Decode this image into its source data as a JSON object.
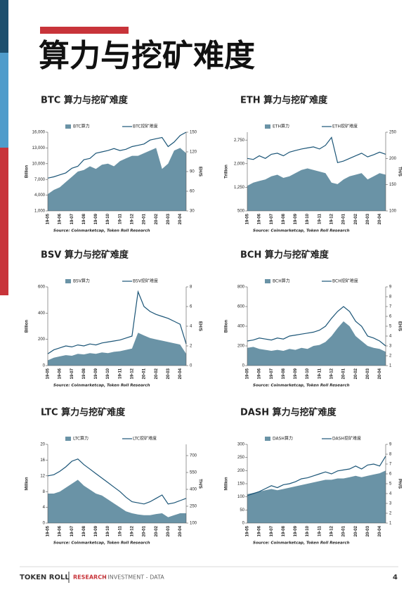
{
  "page_title": "算力与挖矿难度",
  "footer": {
    "brand": "TOKEN ROLL",
    "research": "RESEARCH",
    "rest": "- INVESTMENT - DATA",
    "page": 4
  },
  "chart_data": [
    {
      "type": "combo",
      "title": "BTC 算力与挖矿难度",
      "ylabel": "Billion",
      "y2label": "EH/S",
      "source": "Source: Coinmarketcap, Token Roll Research",
      "categories": [
        "19-05",
        null,
        "19-06",
        null,
        "19-07",
        null,
        "19-08",
        null,
        "19-09",
        null,
        "19-10",
        null,
        "19-11",
        null,
        "19-12",
        null,
        "20-01",
        null,
        "20-02",
        null,
        "20-03",
        null,
        "20-04",
        null
      ],
      "ylim": [
        1000,
        16000
      ],
      "yticks": [
        {
          "value": 1000,
          "label": "1,000"
        },
        {
          "value": 4000,
          "label": "4,000"
        },
        {
          "value": 7000,
          "label": "7,000"
        },
        {
          "value": 10000,
          "label": "10,000"
        },
        {
          "value": 13000,
          "label": "13,000"
        },
        {
          "value": 16000,
          "label": "16,000"
        }
      ],
      "y2lim": [
        30,
        150
      ],
      "y2ticks": [
        30,
        60,
        90,
        120,
        150
      ],
      "series": [
        {
          "name": "BTC算力",
          "kind": "area",
          "color": "#6a93a6",
          "values": [
            4200,
            5000,
            5500,
            6500,
            7500,
            8500,
            8800,
            9500,
            9000,
            9800,
            10000,
            9500,
            10500,
            11000,
            11500,
            11500,
            12000,
            12500,
            13000,
            9000,
            10000,
            12500,
            13000,
            12000
          ]
        },
        {
          "name": "BTC挖矿难度",
          "kind": "line",
          "axis": "y2",
          "color": "#1b5577",
          "values": [
            80,
            82,
            85,
            88,
            95,
            98,
            108,
            110,
            118,
            120,
            122,
            125,
            122,
            124,
            128,
            130,
            132,
            138,
            140,
            142,
            128,
            135,
            145,
            150
          ]
        }
      ]
    },
    {
      "type": "combo",
      "title": "ETH 算力与挖矿难度",
      "ylabel": "Trillion",
      "y2label": "TH/S",
      "source": "Source: Coinmarketcap, Token Roll Research",
      "categories": [
        "19-05",
        null,
        "19-06",
        null,
        "19-07",
        null,
        "19-08",
        null,
        "19-09",
        null,
        "19-10",
        null,
        "19-11",
        null,
        "19-12",
        null,
        "20-01",
        null,
        "20-02",
        null,
        "20-03",
        null,
        "20-04",
        null
      ],
      "ylim": [
        500,
        3000
      ],
      "yticks": [
        500,
        {
          "value": 1250,
          "label": "1,250"
        },
        {
          "value": 2000,
          "label": "2,000"
        },
        {
          "value": 2750,
          "label": "2,750"
        }
      ],
      "y2lim": [
        100,
        250
      ],
      "y2ticks": [
        100,
        150,
        200,
        250
      ],
      "series": [
        {
          "name": "ETH算力",
          "kind": "area",
          "color": "#6a93a6",
          "values": [
            1300,
            1400,
            1450,
            1500,
            1600,
            1650,
            1550,
            1600,
            1700,
            1800,
            1850,
            1800,
            1750,
            1700,
            1400,
            1350,
            1500,
            1600,
            1650,
            1700,
            1500,
            1600,
            1700,
            1650
          ]
        },
        {
          "name": "ETH挖矿难度",
          "kind": "line",
          "axis": "y2",
          "color": "#1b5577",
          "values": [
            200,
            198,
            205,
            200,
            208,
            210,
            205,
            212,
            215,
            218,
            220,
            222,
            218,
            225,
            240,
            192,
            195,
            200,
            205,
            210,
            203,
            207,
            212,
            208
          ]
        }
      ]
    },
    {
      "type": "combo",
      "title": "BSV 算力与挖矿难度",
      "ylabel": "Billion",
      "y2label": "EH/S",
      "source": "Source: Coinmarketcap, Token Roll Research",
      "categories": [
        "19-05",
        null,
        "19-06",
        null,
        "19-07",
        null,
        "19-08",
        null,
        "19-09",
        null,
        "19-10",
        null,
        "19-11",
        null,
        "19-12",
        null,
        "20-01",
        null,
        "20-02",
        null,
        "20-03",
        null,
        "20-04",
        null
      ],
      "ylim": [
        0,
        600
      ],
      "yticks": [
        0,
        200,
        400,
        600
      ],
      "y2lim": [
        0,
        8
      ],
      "y2ticks": [
        0,
        2,
        4,
        6,
        8
      ],
      "series": [
        {
          "name": "BSV算力",
          "kind": "area",
          "color": "#6a93a6",
          "values": [
            40,
            60,
            70,
            80,
            75,
            90,
            85,
            95,
            90,
            100,
            95,
            105,
            110,
            120,
            130,
            250,
            230,
            210,
            200,
            190,
            180,
            170,
            160,
            90
          ]
        },
        {
          "name": "BSV挖矿难度",
          "kind": "line",
          "axis": "y2",
          "color": "#1b5577",
          "values": [
            1.2,
            1.6,
            1.8,
            2.0,
            1.9,
            2.1,
            2.0,
            2.2,
            2.1,
            2.3,
            2.4,
            2.5,
            2.6,
            2.8,
            3.0,
            7.5,
            6.0,
            5.5,
            5.2,
            5.0,
            4.8,
            4.5,
            4.2,
            2.2
          ]
        }
      ]
    },
    {
      "type": "combo",
      "title": "BCH 算力与挖矿难度",
      "ylabel": "Billion",
      "y2label": "EH/S",
      "source": "Source: Coinmarketcap, Token Roll Research",
      "categories": [
        "19-05",
        null,
        "19-06",
        null,
        "19-07",
        null,
        "19-08",
        null,
        "19-09",
        null,
        "19-10",
        null,
        "19-11",
        null,
        "19-12",
        null,
        "20-01",
        null,
        "20-02",
        null,
        "20-03",
        null,
        "20-04",
        null
      ],
      "ylim": [
        0,
        800
      ],
      "yticks": [
        0,
        200,
        400,
        600,
        800
      ],
      "y2lim": [
        1,
        9
      ],
      "y2ticks": [
        1,
        2,
        3,
        4,
        5,
        6,
        7,
        8,
        9
      ],
      "series": [
        {
          "name": "BCH算力",
          "kind": "area",
          "color": "#6a93a6",
          "values": [
            180,
            190,
            170,
            160,
            150,
            160,
            150,
            170,
            160,
            180,
            170,
            200,
            210,
            240,
            300,
            380,
            450,
            400,
            300,
            250,
            200,
            180,
            170,
            140
          ]
        },
        {
          "name": "BCH挖矿难度",
          "kind": "line",
          "axis": "y2",
          "color": "#1b5577",
          "values": [
            3.5,
            3.6,
            3.8,
            3.7,
            3.6,
            3.8,
            3.7,
            4.0,
            4.1,
            4.2,
            4.3,
            4.4,
            4.6,
            5.0,
            5.8,
            6.5,
            7.0,
            6.5,
            5.5,
            5.0,
            4.0,
            3.8,
            3.5,
            3.0
          ]
        }
      ]
    },
    {
      "type": "combo",
      "title": "LTC 算力与挖矿难度",
      "ylabel": "Million",
      "y2label": "TH/S",
      "source": "Source: Coinmarketcap, Token Roll Research",
      "categories": [
        "19-05",
        null,
        "19-06",
        null,
        "19-07",
        null,
        "19-08",
        null,
        "19-09",
        null,
        "19-10",
        null,
        "19-11",
        null,
        "19-12",
        null,
        "20-01",
        null,
        "20-02",
        null,
        "20-03",
        null,
        "20-04",
        null
      ],
      "ylim": [
        0,
        20
      ],
      "yticks": [
        0,
        4,
        8,
        12,
        16,
        20
      ],
      "y2lim": [
        100,
        800
      ],
      "y2ticks": [
        100,
        250,
        400,
        550,
        700
      ],
      "series": [
        {
          "name": "LTC算力",
          "kind": "area",
          "color": "#6a93a6",
          "values": [
            7.5,
            7.5,
            8,
            9,
            10,
            11,
            9.5,
            8.5,
            7.5,
            7,
            6,
            5,
            4,
            3,
            2.5,
            2.2,
            2,
            2,
            2.3,
            2.5,
            1.5,
            2,
            2.5,
            2.5
          ]
        },
        {
          "name": "LTC挖矿难度",
          "kind": "line",
          "axis": "y2",
          "color": "#1b5577",
          "values": [
            520,
            530,
            560,
            600,
            650,
            670,
            620,
            580,
            540,
            500,
            460,
            420,
            380,
            330,
            290,
            280,
            270,
            290,
            320,
            350,
            270,
            280,
            300,
            320
          ]
        }
      ]
    },
    {
      "type": "combo",
      "title": "DASH 算力与挖矿难度",
      "ylabel": "Million",
      "y2label": "PH/S",
      "source": "Source: Coinmarketcap, Token Roll Research",
      "categories": [
        "19-05",
        null,
        "19-06",
        null,
        "19-07",
        null,
        "19-08",
        null,
        "19-09",
        null,
        "19-10",
        null,
        "19-11",
        null,
        "19-12",
        null,
        "20-01",
        null,
        "20-02",
        null,
        "20-03",
        null,
        "20-04",
        null
      ],
      "ylim": [
        0,
        300
      ],
      "yticks": [
        0,
        50,
        100,
        150,
        200,
        250,
        300
      ],
      "y2lim": [
        1,
        9
      ],
      "y2ticks": [
        1,
        2,
        3,
        4,
        5,
        6,
        7,
        8,
        9
      ],
      "series": [
        {
          "name": "DASH算力",
          "kind": "area",
          "color": "#6a93a6",
          "values": [
            110,
            115,
            120,
            125,
            130,
            125,
            130,
            135,
            140,
            145,
            150,
            155,
            160,
            165,
            165,
            170,
            170,
            175,
            180,
            175,
            180,
            185,
            190,
            200
          ]
        },
        {
          "name": "DASH挖矿难度",
          "kind": "line",
          "axis": "y2",
          "color": "#1b5577",
          "values": [
            3.8,
            4.0,
            4.2,
            4.5,
            4.8,
            4.6,
            4.9,
            5.0,
            5.2,
            5.5,
            5.6,
            5.8,
            6.0,
            6.2,
            6.0,
            6.3,
            6.4,
            6.5,
            6.8,
            6.5,
            6.9,
            7.0,
            6.8,
            7.8
          ]
        }
      ]
    }
  ]
}
